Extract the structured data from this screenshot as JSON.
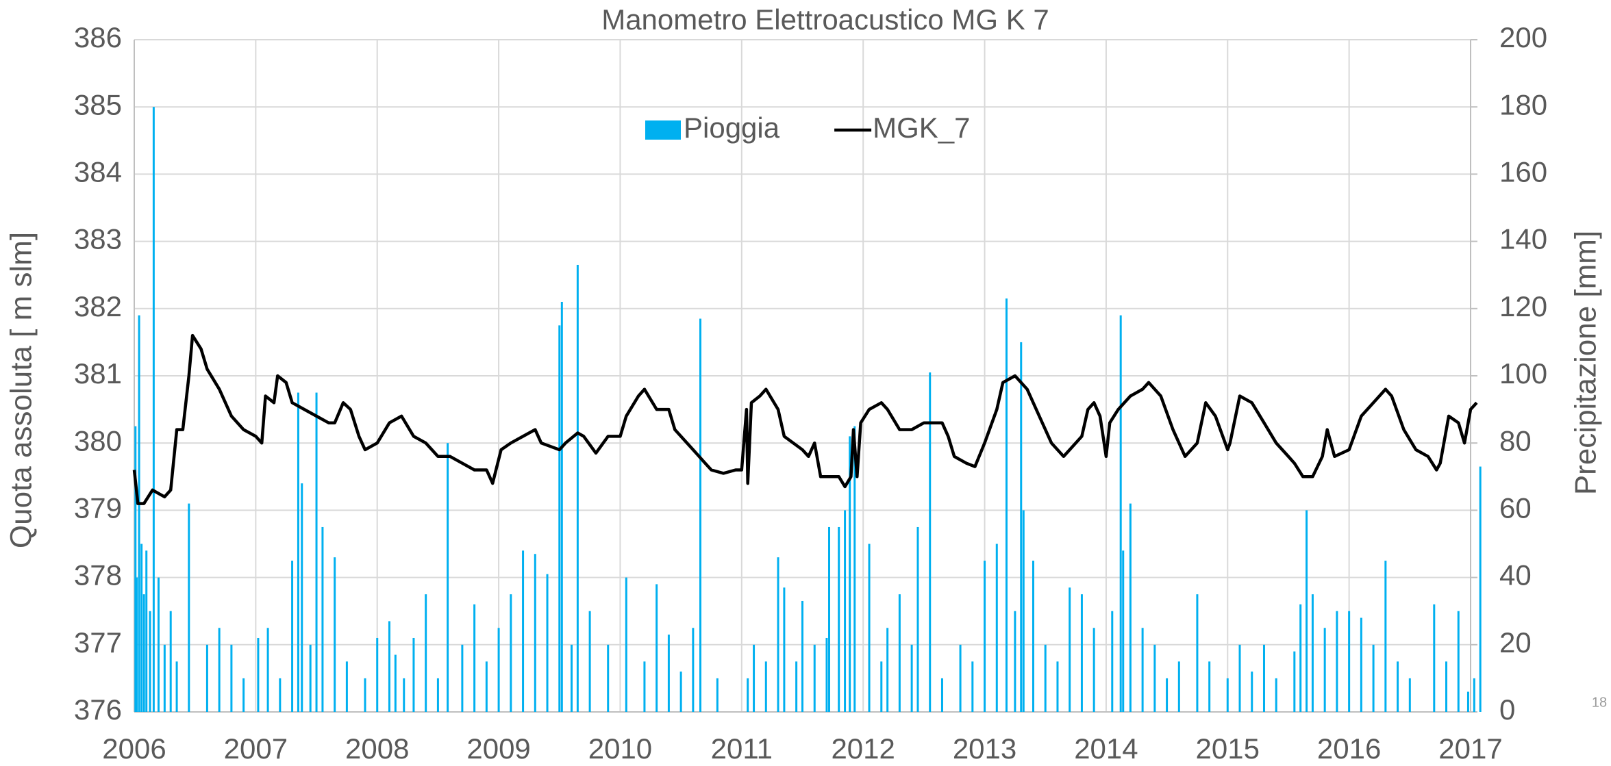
{
  "chart_data": {
    "type": "bar",
    "title": "Manometro Elettroacustico MG K 7",
    "y_label": "Quota assoluta [ m slm]",
    "y2_label": "Precipitazione [mm]",
    "page_number": "18",
    "xlim": [
      2006,
      2017
    ],
    "xticks": [
      2006,
      2007,
      2008,
      2009,
      2010,
      2011,
      2012,
      2013,
      2014,
      2015,
      2016,
      2017
    ],
    "ylim": [
      376,
      386
    ],
    "yticks": [
      376,
      377,
      378,
      379,
      380,
      381,
      382,
      383,
      384,
      385,
      386
    ],
    "y2lim": [
      0,
      200
    ],
    "y2ticks": [
      0,
      20,
      40,
      60,
      80,
      100,
      120,
      140,
      160,
      180,
      200
    ],
    "grid": true,
    "legend": "top",
    "series": [
      {
        "name": "Pioggia",
        "type": "bar",
        "axis": "y2",
        "color": "#00b0f0",
        "x": [
          2006.01,
          2006.02,
          2006.04,
          2006.06,
          2006.08,
          2006.1,
          2006.13,
          2006.16,
          2006.2,
          2006.25,
          2006.3,
          2006.35,
          2006.45,
          2006.6,
          2006.7,
          2006.8,
          2006.9,
          2007.02,
          2007.1,
          2007.2,
          2007.3,
          2007.35,
          2007.38,
          2007.45,
          2007.5,
          2007.55,
          2007.65,
          2007.75,
          2007.9,
          2008.0,
          2008.1,
          2008.15,
          2008.22,
          2008.3,
          2008.4,
          2008.5,
          2008.58,
          2008.7,
          2008.8,
          2008.9,
          2009.0,
          2009.1,
          2009.2,
          2009.3,
          2009.4,
          2009.5,
          2009.52,
          2009.6,
          2009.65,
          2009.75,
          2009.9,
          2010.05,
          2010.2,
          2010.3,
          2010.4,
          2010.5,
          2010.6,
          2010.66,
          2010.8,
          2011.05,
          2011.1,
          2011.2,
          2011.3,
          2011.35,
          2011.45,
          2011.5,
          2011.6,
          2011.7,
          2011.72,
          2011.8,
          2011.85,
          2011.89,
          2011.93,
          2012.05,
          2012.15,
          2012.2,
          2012.3,
          2012.4,
          2012.45,
          2012.55,
          2012.65,
          2012.8,
          2012.9,
          2013.0,
          2013.1,
          2013.18,
          2013.25,
          2013.3,
          2013.32,
          2013.4,
          2013.5,
          2013.6,
          2013.7,
          2013.8,
          2013.9,
          2014.05,
          2014.12,
          2014.14,
          2014.2,
          2014.3,
          2014.4,
          2014.5,
          2014.6,
          2014.75,
          2014.85,
          2015.0,
          2015.1,
          2015.2,
          2015.3,
          2015.4,
          2015.55,
          2015.6,
          2015.65,
          2015.7,
          2015.8,
          2015.9,
          2016.0,
          2016.1,
          2016.2,
          2016.3,
          2016.4,
          2016.5,
          2016.7,
          2016.8,
          2016.9,
          2016.98,
          2017.03,
          2017.08
        ],
        "values": [
          85,
          40,
          118,
          50,
          35,
          48,
          30,
          180,
          40,
          20,
          30,
          15,
          62,
          20,
          25,
          20,
          10,
          22,
          25,
          10,
          45,
          95,
          68,
          20,
          95,
          55,
          46,
          15,
          10,
          22,
          27,
          17,
          10,
          22,
          35,
          10,
          80,
          20,
          32,
          15,
          25,
          35,
          48,
          47,
          41,
          115,
          122,
          20,
          133,
          30,
          20,
          40,
          15,
          38,
          23,
          12,
          25,
          117,
          10,
          10,
          20,
          15,
          46,
          37,
          15,
          33,
          20,
          22,
          55,
          55,
          60,
          82,
          85,
          50,
          15,
          25,
          35,
          20,
          55,
          101,
          10,
          20,
          15,
          45,
          50,
          123,
          30,
          110,
          60,
          45,
          20,
          15,
          37,
          35,
          25,
          30,
          118,
          48,
          62,
          25,
          20,
          10,
          15,
          35,
          15,
          10,
          20,
          12,
          20,
          10,
          18,
          32,
          60,
          35,
          25,
          30,
          30,
          28,
          20,
          45,
          15,
          10,
          32,
          15,
          30,
          6,
          10,
          73
        ]
      },
      {
        "name": "MGK_7",
        "type": "line",
        "color": "#000000",
        "x": [
          2006.0,
          2006.03,
          2006.08,
          2006.15,
          2006.25,
          2006.3,
          2006.35,
          2006.4,
          2006.45,
          2006.48,
          2006.55,
          2006.6,
          2006.7,
          2006.8,
          2006.9,
          2007.0,
          2007.05,
          2007.08,
          2007.15,
          2007.18,
          2007.25,
          2007.3,
          2007.4,
          2007.5,
          2007.6,
          2007.65,
          2007.72,
          2007.78,
          2007.85,
          2007.9,
          2008.0,
          2008.1,
          2008.2,
          2008.3,
          2008.4,
          2008.5,
          2008.6,
          2008.7,
          2008.8,
          2008.9,
          2008.95,
          2009.02,
          2009.1,
          2009.2,
          2009.3,
          2009.35,
          2009.5,
          2009.55,
          2009.65,
          2009.7,
          2009.8,
          2009.9,
          2010.0,
          2010.05,
          2010.15,
          2010.2,
          2010.3,
          2010.4,
          2010.45,
          2010.6,
          2010.7,
          2010.75,
          2010.85,
          2010.95,
          2011.0,
          2011.04,
          2011.05,
          2011.08,
          2011.15,
          2011.2,
          2011.3,
          2011.35,
          2011.5,
          2011.55,
          2011.6,
          2011.65,
          2011.7,
          2011.8,
          2011.85,
          2011.9,
          2011.92,
          2011.95,
          2011.98,
          2012.05,
          2012.15,
          2012.2,
          2012.3,
          2012.4,
          2012.5,
          2012.65,
          2012.7,
          2012.75,
          2012.85,
          2012.92,
          2013.0,
          2013.1,
          2013.15,
          2013.25,
          2013.35,
          2013.5,
          2013.55,
          2013.65,
          2013.7,
          2013.8,
          2013.85,
          2013.9,
          2013.95,
          2014.0,
          2014.03,
          2014.1,
          2014.2,
          2014.3,
          2014.35,
          2014.45,
          2014.55,
          2014.65,
          2014.75,
          2014.82,
          2014.9,
          2015.0,
          2015.02,
          2015.1,
          2015.2,
          2015.3,
          2015.4,
          2015.5,
          2015.55,
          2015.62,
          2015.7,
          2015.78,
          2015.82,
          2015.88,
          2016.0,
          2016.1,
          2016.2,
          2016.3,
          2016.35,
          2016.45,
          2016.55,
          2016.65,
          2016.72,
          2016.75,
          2016.82,
          2016.9,
          2016.95,
          2017.0,
          2017.05
        ],
        "values": [
          379.6,
          379.1,
          379.1,
          379.3,
          379.2,
          379.3,
          380.2,
          380.2,
          381.0,
          381.6,
          381.4,
          381.1,
          380.8,
          380.4,
          380.2,
          380.1,
          380.0,
          380.7,
          380.6,
          381.0,
          380.9,
          380.6,
          380.5,
          380.4,
          380.3,
          380.3,
          380.6,
          380.5,
          380.1,
          379.9,
          380.0,
          380.3,
          380.4,
          380.1,
          380.0,
          379.8,
          379.8,
          379.7,
          379.6,
          379.6,
          379.4,
          379.9,
          380.0,
          380.1,
          380.2,
          380.0,
          379.9,
          380.0,
          380.15,
          380.1,
          379.85,
          380.1,
          380.1,
          380.4,
          380.7,
          380.8,
          380.5,
          380.5,
          380.2,
          379.9,
          379.7,
          379.6,
          379.55,
          379.6,
          379.6,
          380.5,
          379.4,
          380.6,
          380.7,
          380.8,
          380.5,
          380.1,
          379.9,
          379.8,
          380.0,
          379.5,
          379.5,
          379.5,
          379.35,
          379.5,
          380.2,
          379.5,
          380.3,
          380.5,
          380.6,
          380.5,
          380.2,
          380.2,
          380.3,
          380.3,
          380.1,
          379.8,
          379.7,
          379.65,
          380.0,
          380.5,
          380.9,
          381.0,
          380.8,
          380.2,
          380.0,
          379.8,
          379.9,
          380.1,
          380.5,
          380.6,
          380.4,
          379.8,
          380.3,
          380.5,
          380.7,
          380.8,
          380.9,
          380.7,
          380.2,
          379.8,
          380.0,
          380.6,
          380.4,
          379.9,
          380.0,
          380.7,
          380.6,
          380.3,
          380.0,
          379.8,
          379.7,
          379.5,
          379.5,
          379.8,
          380.2,
          379.8,
          379.9,
          380.4,
          380.6,
          380.8,
          380.7,
          380.2,
          379.9,
          379.8,
          379.6,
          379.7,
          380.4,
          380.3,
          380.0,
          380.5,
          380.6
        ]
      }
    ]
  }
}
